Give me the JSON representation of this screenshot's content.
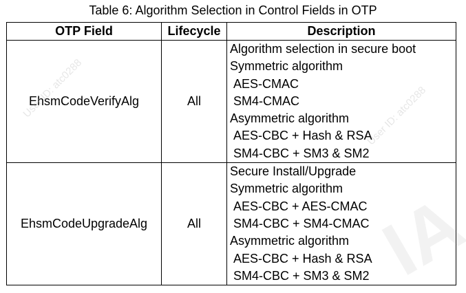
{
  "caption": "Table 6: Algorithm Selection in Control Fields in OTP",
  "headers": [
    "OTP Field",
    "Lifecycle",
    "Description"
  ],
  "rows": [
    {
      "field": "EhsmCodeVerifyAlg",
      "lifecycle": "All",
      "description": [
        "Algorithm selection in secure boot",
        "Symmetric algorithm",
        "AES-CMAC",
        "SM4-CMAC",
        "Asymmetric algorithm",
        "AES-CBC + Hash & RSA",
        "SM4-CBC + SM3 & SM2"
      ]
    },
    {
      "field": "EhsmCodeUpgradeAlg",
      "lifecycle": "All",
      "description": [
        "Secure Install/Upgrade",
        "Symmetric algorithm",
        "AES-CBC + AES-CMAC",
        "SM4-CBC + SM4-CMAC",
        "Asymmetric algorithm",
        "AES-CBC + Hash & RSA",
        "SM4-CBC + SM3 & SM2"
      ]
    }
  ],
  "watermark": {
    "user_text": "User ID: atc0288",
    "big_text": "IA"
  }
}
